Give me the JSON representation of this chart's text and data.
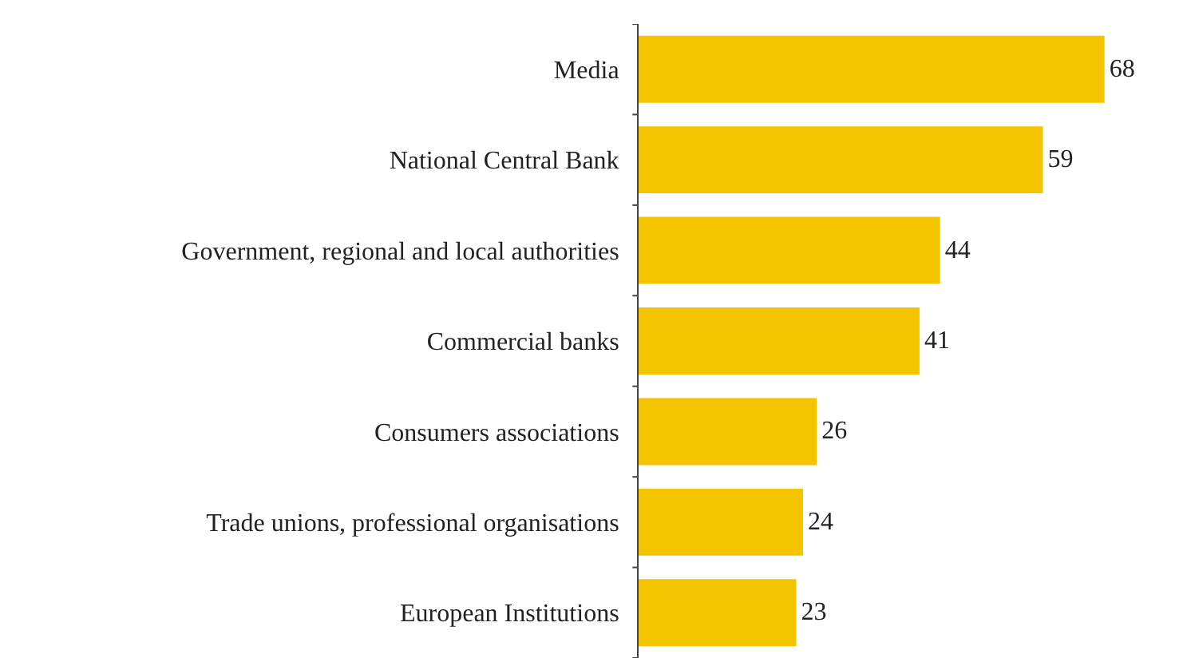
{
  "chart_data": {
    "type": "bar",
    "orientation": "horizontal",
    "categories": [
      "Media",
      "National Central Bank",
      "Government, regional and local authorities",
      "Commercial banks",
      "Consumers associations",
      "Trade unions, professional organisations",
      "European Institutions"
    ],
    "values": [
      68,
      59,
      44,
      41,
      26,
      24,
      23
    ],
    "color": "#f5c400",
    "data_labels": true
  }
}
